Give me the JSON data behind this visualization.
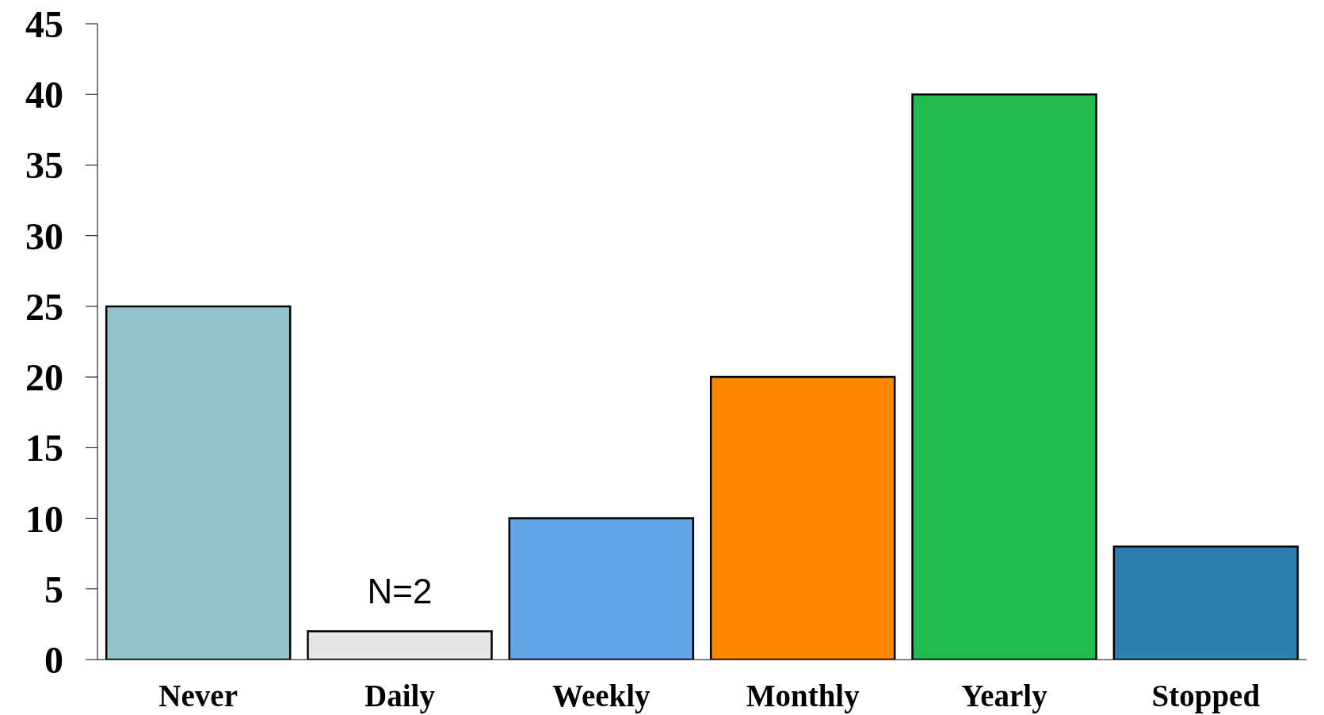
{
  "chart_data": {
    "type": "bar",
    "categories": [
      "Never",
      "Daily",
      "Weekly",
      "Monthly",
      "Yearly",
      "Stopped"
    ],
    "values": [
      25,
      2,
      10,
      20,
      40,
      8
    ],
    "colors": [
      "#95c4cc",
      "#e6e6e6",
      "#62a6e6",
      "#ff8800",
      "#22bb50",
      "#2e7fb0"
    ],
    "value_labels": [
      null,
      "N=2",
      null,
      null,
      null,
      null
    ],
    "ylim": [
      0,
      45
    ],
    "yticks": [
      0,
      5,
      10,
      15,
      20,
      25,
      30,
      35,
      40,
      45
    ]
  }
}
